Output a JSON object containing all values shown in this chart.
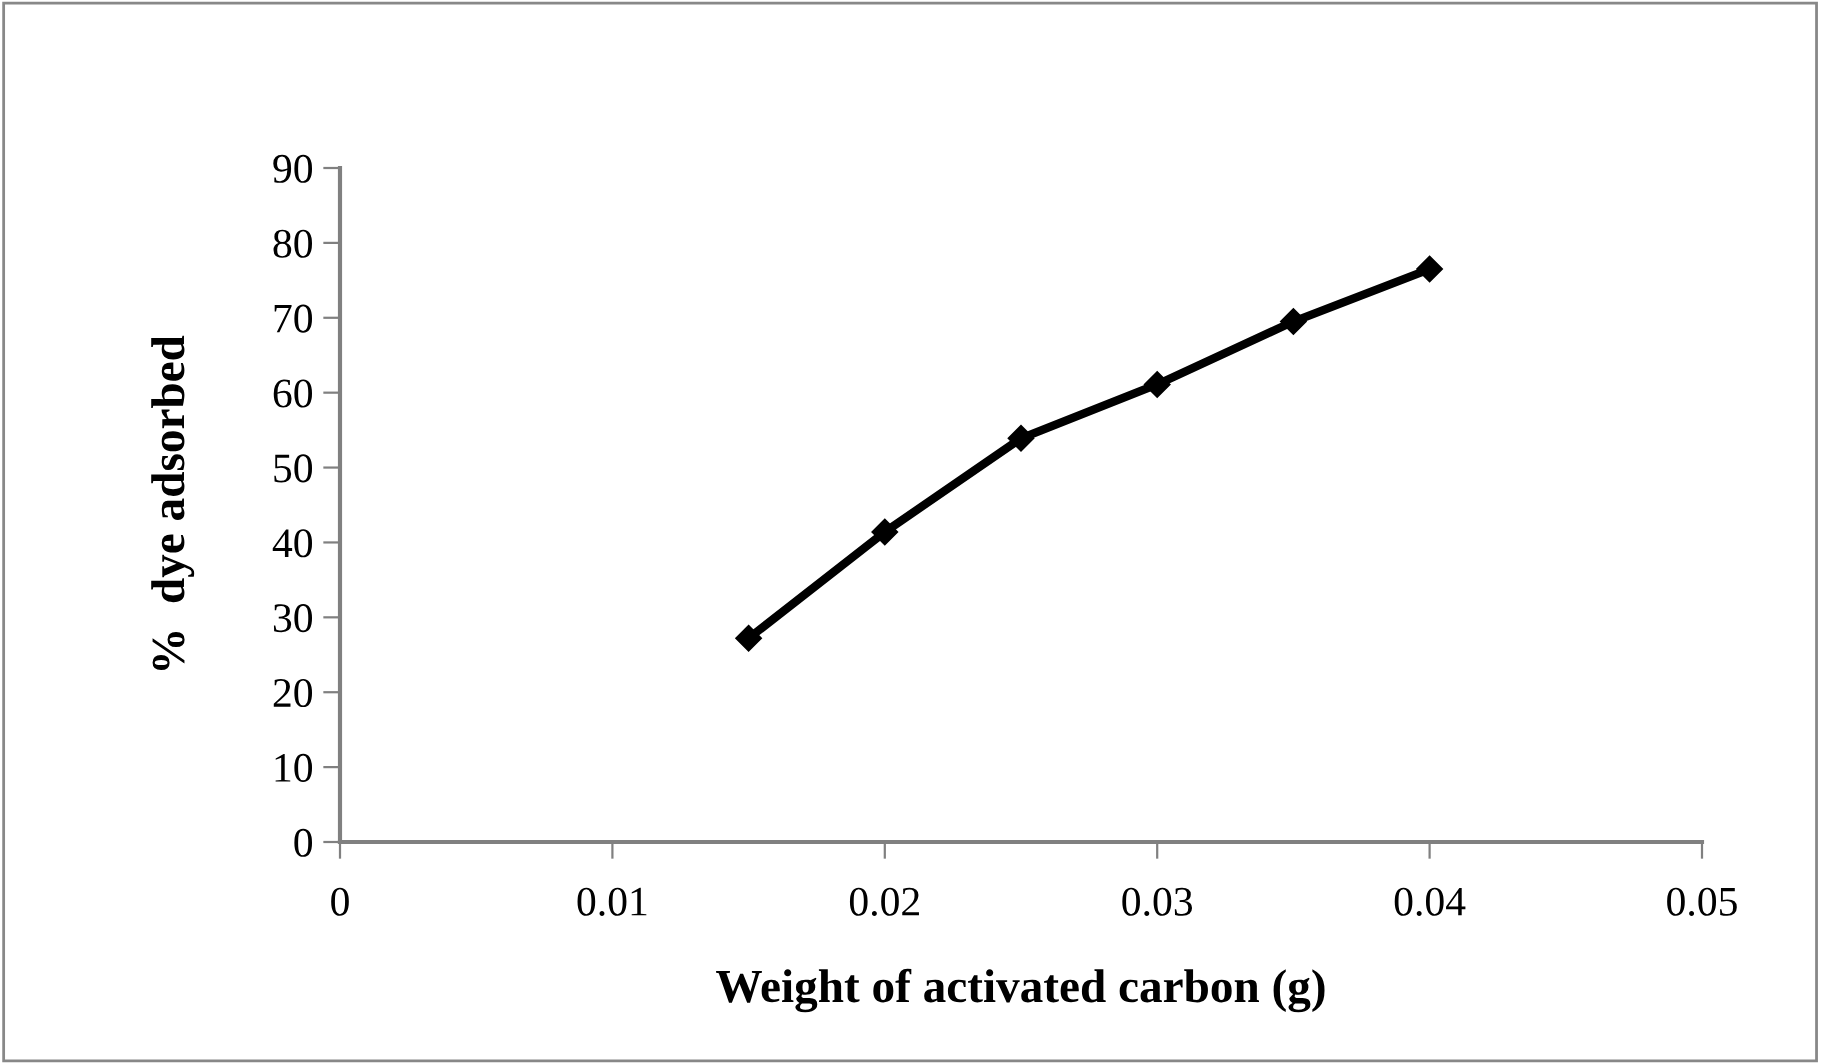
{
  "chart_data": {
    "type": "line",
    "xlabel": "Weight of activated carbon (g)",
    "ylabel": "%  dye adsorbed",
    "x": [
      0.015,
      0.02,
      0.025,
      0.03,
      0.035,
      0.04
    ],
    "series": [
      {
        "color": "#000000",
        "values": [
          27.2,
          41.4,
          53.9,
          61.1,
          69.5,
          76.5
        ]
      }
    ],
    "xlim": [
      0,
      0.05
    ],
    "xticks": [
      0,
      0.01,
      0.02,
      0.03,
      0.04,
      0.05
    ],
    "ylim": [
      0,
      90
    ],
    "yticks": [
      0,
      10,
      20,
      30,
      40,
      50,
      60,
      70,
      80,
      90
    ],
    "marker": "diamond",
    "line_style": "solid",
    "grid": false
  }
}
